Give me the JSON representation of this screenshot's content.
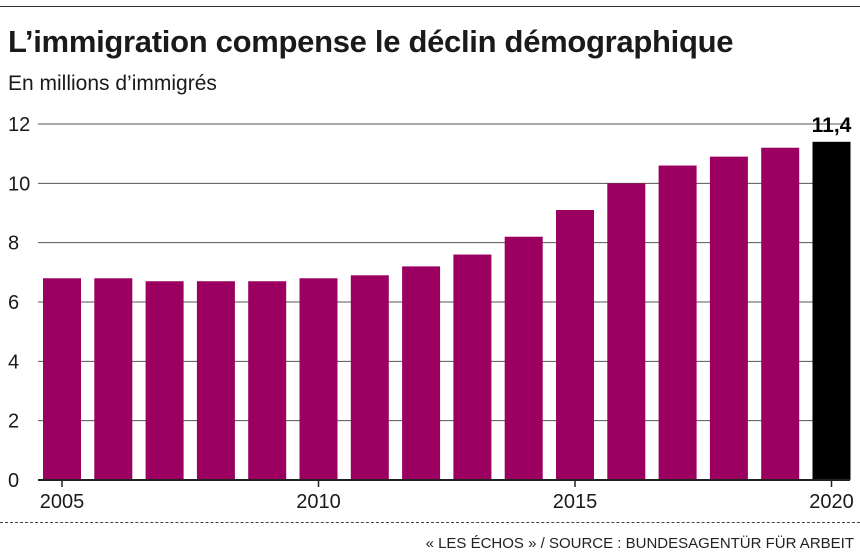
{
  "title": "L’immigration compense le déclin démographique",
  "subtitle": "En millions d’immigrés",
  "source": "« LES ÉCHOS » / SOURCE : BUNDESAGENTÜR FÜR ARBEIT",
  "colors": {
    "bar": "#9b0060",
    "highlight": "#000000",
    "grid": "#555555",
    "axis": "#222222"
  },
  "chart_data": {
    "type": "bar",
    "title": "L’immigration compense le déclin démographique",
    "ylabel": "En millions d’immigrés",
    "categories": [
      "2005",
      "2006",
      "2007",
      "2008",
      "2009",
      "2010",
      "2011",
      "2012",
      "2013",
      "2014",
      "2015",
      "2016",
      "2017",
      "2018",
      "2019",
      "2020"
    ],
    "values": [
      6.8,
      6.8,
      6.7,
      6.7,
      6.7,
      6.8,
      6.9,
      7.2,
      7.6,
      8.2,
      9.1,
      10.0,
      10.6,
      10.9,
      11.2,
      11.4
    ],
    "x_tick_labels": [
      {
        "category": "2005",
        "label": "2005"
      },
      {
        "category": "2010",
        "label": "2010"
      },
      {
        "category": "2015",
        "label": "2015"
      },
      {
        "category": "2020",
        "label": "2020"
      }
    ],
    "y_ticks": [
      0,
      2,
      4,
      6,
      8,
      10,
      12
    ],
    "y_tick_labels": [
      "0",
      "2",
      "4",
      "6",
      "8",
      "10",
      "12"
    ],
    "ylim": [
      0,
      12
    ],
    "highlight_index": 15,
    "data_labels": [
      {
        "index": 15,
        "text": "11,4"
      }
    ],
    "grid": true,
    "legend": "none"
  }
}
